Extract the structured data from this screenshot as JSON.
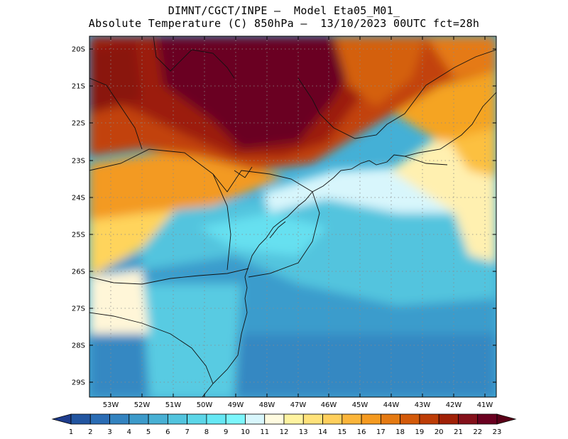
{
  "header": {
    "line1": "DIMNT/CGCT/INPE –  Model Eta05_M01_",
    "line2": "Absolute Temperature (C) 850hPa –  13/10/2023 00UTC fct=28h"
  },
  "axes": {
    "lat_labels": [
      "20S",
      "21S",
      "22S",
      "23S",
      "24S",
      "25S",
      "26S",
      "27S",
      "28S",
      "29S"
    ],
    "lon_labels": [
      "53W",
      "52W",
      "51W",
      "50W",
      "49W",
      "48W",
      "47W",
      "46W",
      "45W",
      "44W",
      "43W",
      "42W",
      "41W"
    ]
  },
  "colorbar": {
    "labels": [
      "1",
      "2",
      "3",
      "4",
      "5",
      "6",
      "7",
      "8",
      "9",
      "10",
      "11",
      "12",
      "13",
      "14",
      "15",
      "16",
      "17",
      "18",
      "19",
      "20",
      "21",
      "22",
      "23"
    ],
    "colors": [
      "#1e3c8c",
      "#2255a0",
      "#2a6cb4",
      "#3383c0",
      "#3c9aca",
      "#48b0d4",
      "#52c4de",
      "#5cd6e8",
      "#66e8f4",
      "#7cf6fc",
      "#d8f6fc",
      "#fffbe0",
      "#fff3a0",
      "#ffe27a",
      "#ffcf5c",
      "#fbb53a",
      "#f59a20",
      "#e57a12",
      "#d35a0a",
      "#bd3c06",
      "#a02006",
      "#84101a",
      "#6a0020",
      "#5a0018"
    ]
  }
}
